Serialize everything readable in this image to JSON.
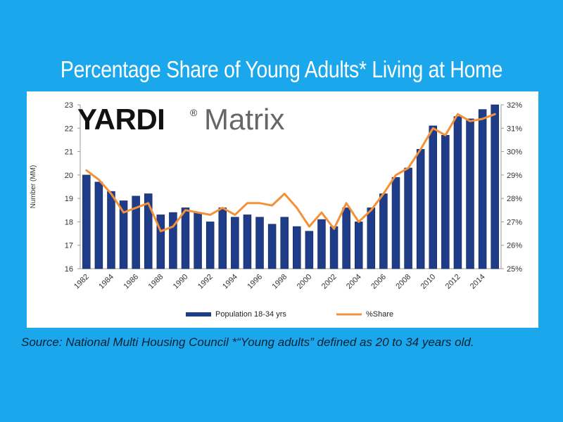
{
  "title": "Percentage Share of Young Adults* Living at Home",
  "logo": {
    "yardi": "YARDI",
    "reg": "®",
    "matrix": "Matrix"
  },
  "source": "Source: National Multi Housing Council    *“Young adults” defined as 20 to 34 years old.",
  "colors": {
    "background": "#1aa7ec",
    "bar": "#1f3c88",
    "line": "#f3913a",
    "title": "#ffffff"
  },
  "chart_data": {
    "type": "bar",
    "x": [
      1982,
      1983,
      1984,
      1985,
      1986,
      1987,
      1988,
      1989,
      1990,
      1991,
      1992,
      1993,
      1994,
      1995,
      1996,
      1997,
      1998,
      1999,
      2000,
      2001,
      2002,
      2003,
      2004,
      2005,
      2006,
      2007,
      2008,
      2009,
      2010,
      2011,
      2012,
      2013,
      2014,
      2015
    ],
    "x_tick_labels": [
      "1982",
      "1984",
      "1986",
      "1988",
      "1990",
      "1992",
      "1994",
      "1996",
      "1998",
      "2000",
      "2002",
      "2004",
      "2006",
      "2008",
      "2010",
      "2012",
      "2014"
    ],
    "series": [
      {
        "name": "Population 18-34 yrs",
        "type": "bar",
        "axis": "left",
        "values": [
          20.0,
          19.7,
          19.3,
          18.9,
          19.1,
          19.2,
          18.3,
          18.4,
          18.6,
          18.4,
          18.0,
          18.6,
          18.2,
          18.3,
          18.2,
          17.9,
          18.2,
          17.8,
          17.6,
          18.1,
          17.8,
          18.6,
          18.0,
          18.6,
          19.2,
          19.9,
          20.3,
          21.1,
          22.1,
          21.7,
          22.5,
          22.4,
          22.8,
          23.0
        ]
      },
      {
        "name": "%Share",
        "type": "line",
        "axis": "right",
        "values": [
          29.2,
          28.8,
          28.2,
          27.4,
          27.6,
          27.8,
          26.6,
          26.8,
          27.5,
          27.4,
          27.3,
          27.6,
          27.3,
          27.8,
          27.8,
          27.7,
          28.2,
          27.6,
          26.8,
          27.4,
          26.7,
          27.8,
          27.0,
          27.5,
          28.2,
          29.0,
          29.3,
          30.1,
          31.0,
          30.7,
          31.6,
          31.3,
          31.4,
          31.6
        ]
      }
    ],
    "ylabel": "Number (MM)",
    "ylim": [
      16,
      23
    ],
    "y_ticks": [
      "16",
      "17",
      "18",
      "19",
      "20",
      "21",
      "22",
      "23"
    ],
    "y2lim": [
      25,
      32
    ],
    "y2_ticks": [
      "25%",
      "26%",
      "27%",
      "28%",
      "29%",
      "30%",
      "31%",
      "32%"
    ],
    "grid": false,
    "legend_position": "bottom"
  }
}
